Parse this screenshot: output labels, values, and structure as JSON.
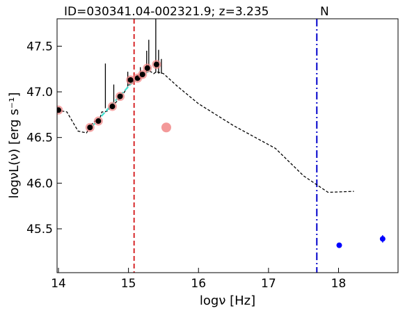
{
  "chart_data": {
    "type": "scatter",
    "title": "ID=030341.04-002321.9; z=3.235",
    "annotation": "N",
    "xlabel": "logν [Hz]",
    "ylabel": "logνL(ν) [erg s⁻¹]",
    "xlim": [
      13.98,
      18.85
    ],
    "ylim": [
      45.02,
      47.8
    ],
    "xticks": [
      14,
      15,
      16,
      17,
      18
    ],
    "yticks": [
      45.5,
      46.0,
      46.5,
      47.0,
      47.5
    ],
    "grid": false,
    "colors": {
      "template": "#000000",
      "fit": "#40e0d0",
      "photometry_outline": "#f08080",
      "photometry_fill": "#000000",
      "excluded_point": "#f08080",
      "xray": "#0000ff",
      "vline_red": "#d62728",
      "vline_blue": "#0000cc"
    },
    "vertical_lines": [
      {
        "x": 15.08,
        "style": "dashed",
        "color": "#d62728"
      },
      {
        "x": 17.69,
        "style": "dashdot",
        "color": "#0000cc"
      }
    ],
    "series": [
      {
        "style": "template-dashed",
        "points": [
          [
            13.98,
            46.8
          ],
          [
            14.12,
            46.78
          ],
          [
            14.28,
            46.57
          ],
          [
            14.4,
            46.55
          ],
          [
            14.46,
            46.63
          ],
          [
            14.52,
            46.68
          ],
          [
            14.58,
            46.68
          ],
          [
            14.62,
            46.78
          ],
          [
            14.66,
            46.78
          ],
          [
            14.7,
            46.79
          ],
          [
            14.76,
            46.85
          ],
          [
            14.8,
            46.87
          ],
          [
            14.84,
            46.9
          ],
          [
            14.88,
            46.93
          ],
          [
            14.92,
            46.97
          ],
          [
            14.96,
            47.02
          ],
          [
            15.0,
            47.07
          ],
          [
            15.04,
            47.1
          ],
          [
            15.08,
            47.12
          ],
          [
            15.12,
            47.14
          ],
          [
            15.16,
            47.15
          ],
          [
            15.2,
            47.19
          ],
          [
            15.24,
            47.22
          ],
          [
            15.28,
            47.24
          ],
          [
            15.32,
            47.22
          ],
          [
            15.36,
            47.2
          ],
          [
            15.4,
            47.22
          ],
          [
            15.5,
            47.2
          ],
          [
            15.7,
            47.06
          ],
          [
            16.0,
            46.87
          ],
          [
            16.5,
            46.63
          ],
          [
            17.1,
            46.38
          ],
          [
            17.5,
            46.08
          ],
          [
            17.85,
            45.9
          ],
          [
            18.22,
            45.91
          ]
        ]
      },
      {
        "style": "template-spikes",
        "spikes": [
          [
            14.67,
            46.82,
            47.31
          ],
          [
            14.79,
            46.88,
            47.08
          ],
          [
            14.99,
            47.06,
            47.22
          ],
          [
            15.17,
            47.15,
            47.27
          ],
          [
            15.26,
            47.22,
            47.45
          ],
          [
            15.29,
            47.22,
            47.57
          ],
          [
            15.39,
            47.21,
            47.8
          ],
          [
            15.43,
            47.2,
            47.46
          ],
          [
            15.47,
            47.2,
            47.36
          ]
        ]
      },
      {
        "style": "fit-dashed",
        "points": [
          [
            14.48,
            46.62
          ],
          [
            14.75,
            46.85
          ],
          [
            15.05,
            47.1
          ],
          [
            15.2,
            47.18
          ],
          [
            15.33,
            47.25
          ]
        ]
      },
      {
        "style": "photometry",
        "points": [
          [
            14.0,
            46.8
          ],
          [
            14.45,
            46.61
          ],
          [
            14.57,
            46.68
          ],
          [
            14.77,
            46.84
          ],
          [
            14.88,
            46.95
          ],
          [
            15.03,
            47.13
          ],
          [
            15.13,
            47.15
          ],
          [
            15.2,
            47.19
          ],
          [
            15.27,
            47.26
          ],
          [
            15.4,
            47.3
          ]
        ]
      },
      {
        "style": "excluded",
        "points": [
          [
            15.54,
            46.61
          ]
        ]
      },
      {
        "style": "xray",
        "points": [
          [
            18.01,
            45.32,
            0.02
          ],
          [
            18.63,
            45.39,
            0.04
          ]
        ]
      }
    ]
  }
}
